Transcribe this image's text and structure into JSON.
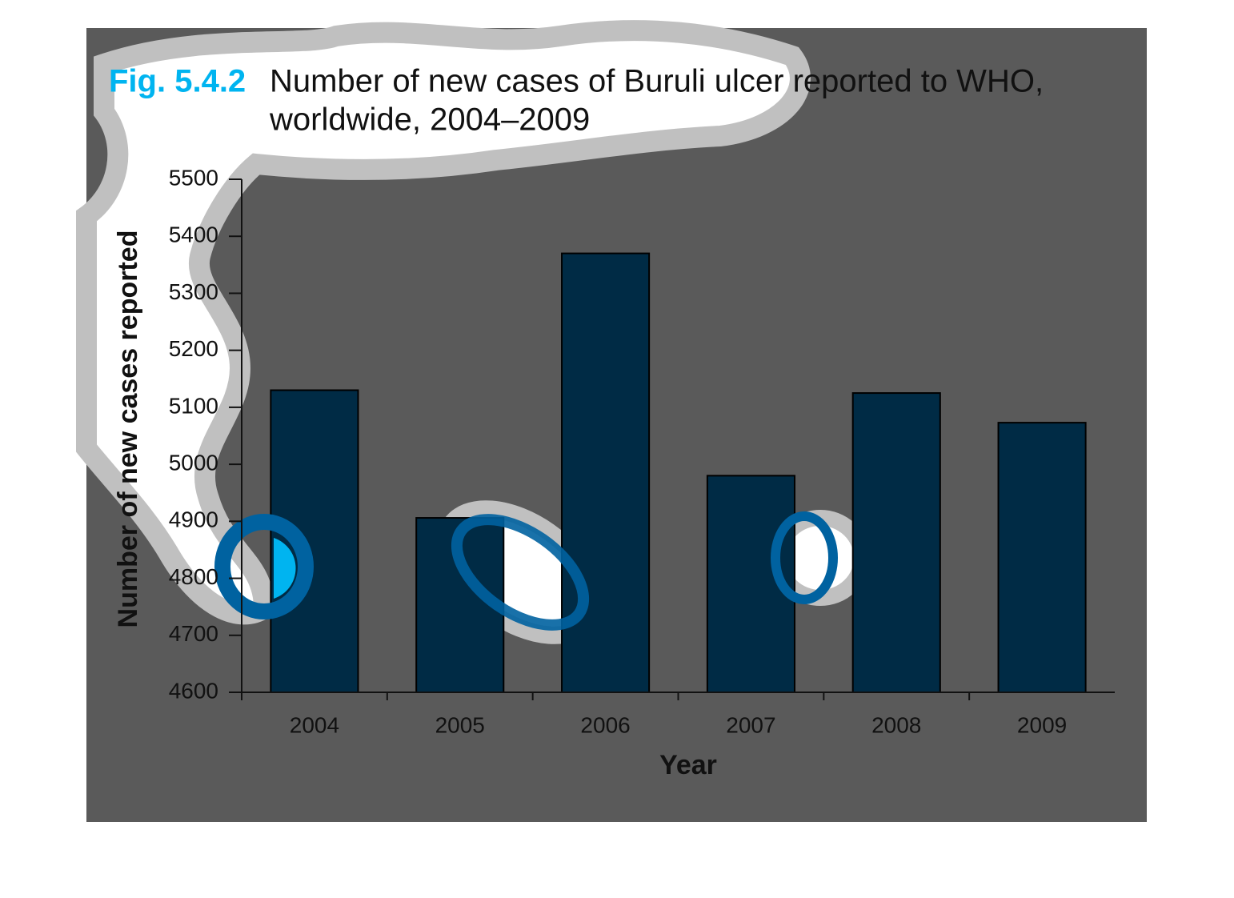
{
  "chart_data": {
    "type": "bar",
    "figure_label": "Fig. 5.4.2",
    "title": [
      "Number of new cases of Buruli ulcer reported to WHO,",
      "worldwide, 2004–2009"
    ],
    "x_label": "Year",
    "y_label": "Number of new cases reported",
    "categories": [
      "2004",
      "2005",
      "2006",
      "2007",
      "2008",
      "2009"
    ],
    "values": [
      5130,
      4906,
      5370,
      4980,
      5125,
      5073
    ],
    "color": "#002b45",
    "ylim": [
      4600,
      5500
    ],
    "yticks": [
      4600,
      4700,
      4800,
      4900,
      5000,
      5100,
      5200,
      5300,
      5400,
      5500
    ],
    "grid": false
  }
}
